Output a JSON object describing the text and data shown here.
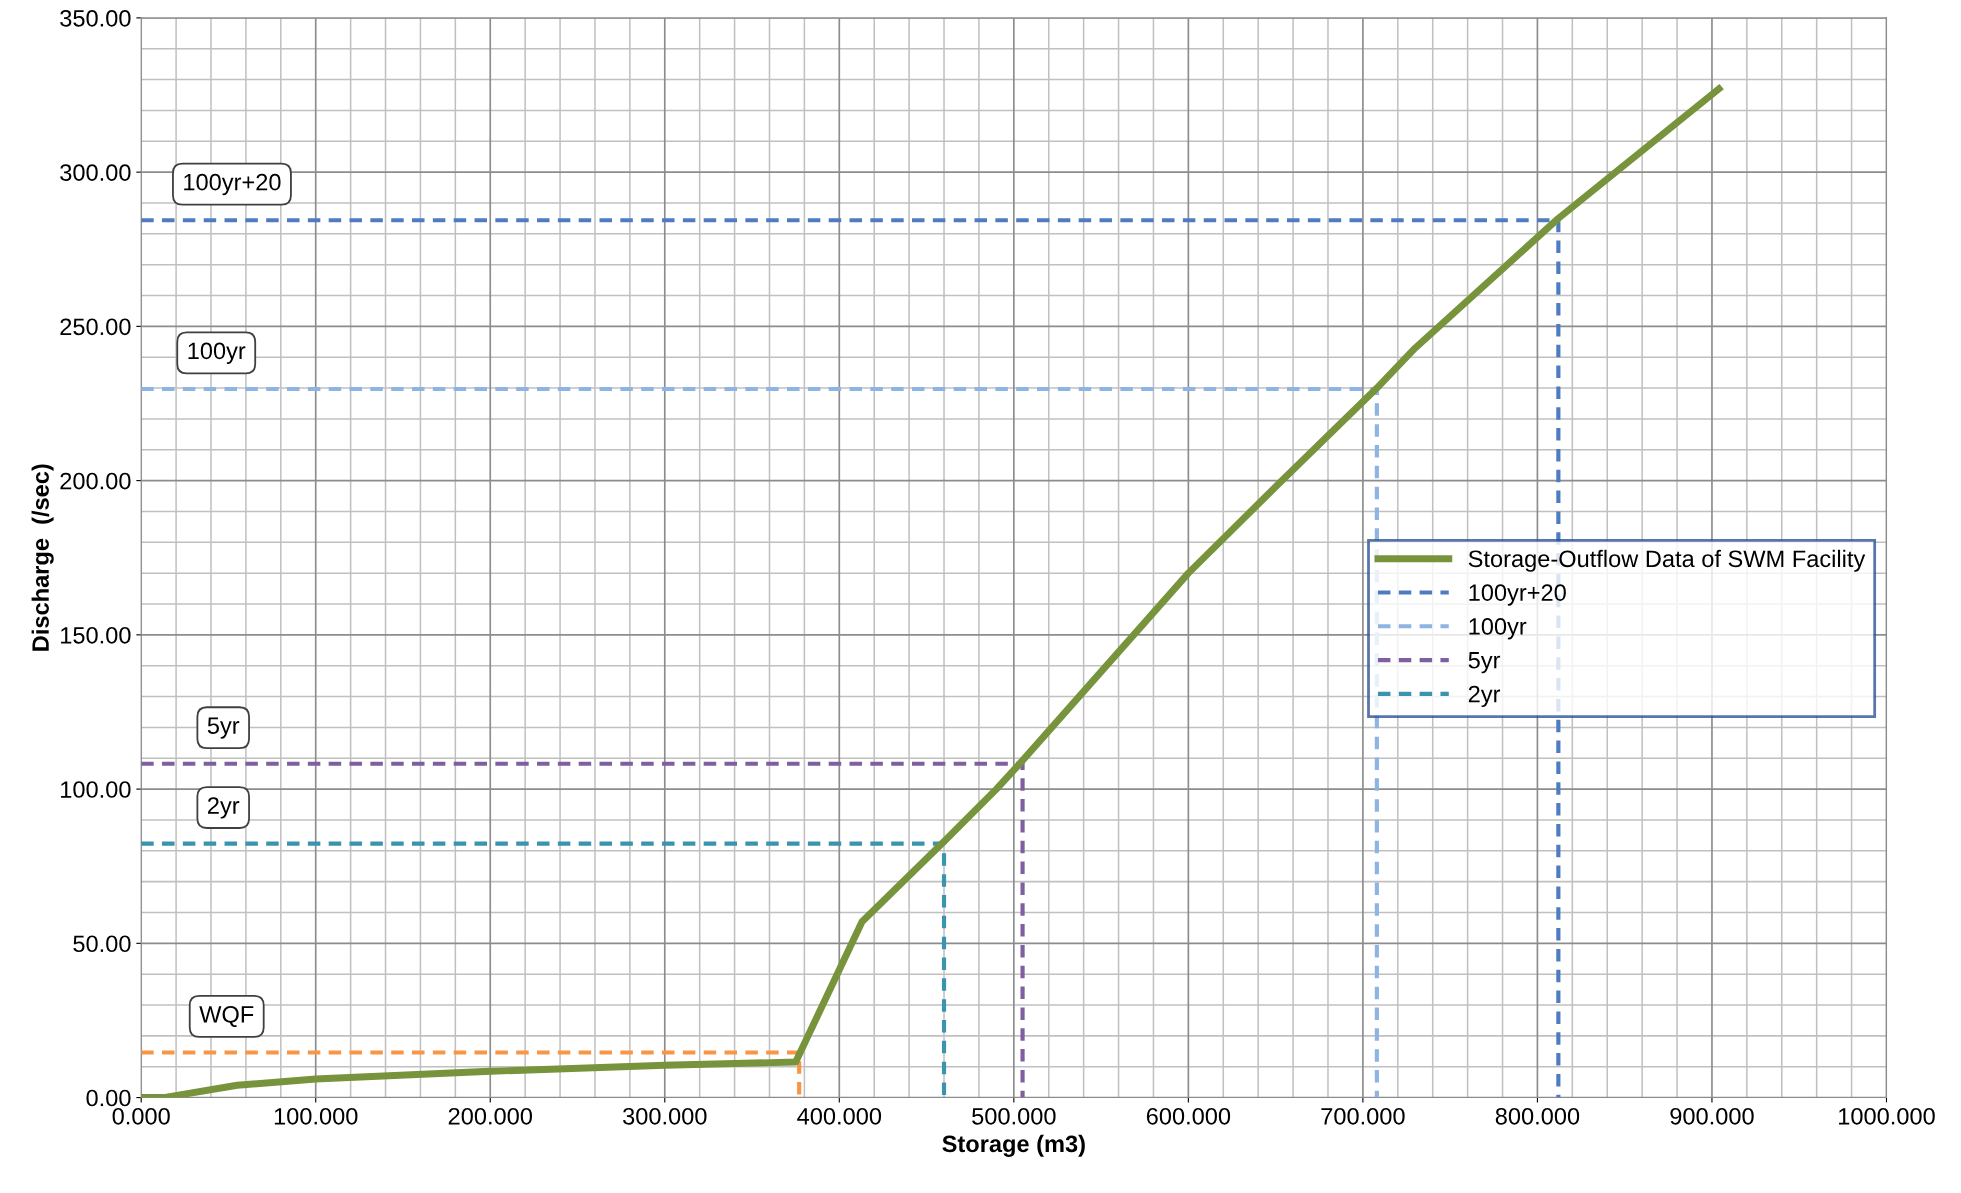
{
  "chart_data": {
    "type": "line",
    "xlabel": "Storage (m3)",
    "ylabel": "Discharge  (/sec)",
    "xlim": [
      0,
      1000
    ],
    "ylim": [
      0,
      350
    ],
    "xticks": [
      {
        "value": 0,
        "label": "0.000"
      },
      {
        "value": 100,
        "label": "100.000"
      },
      {
        "value": 200,
        "label": "200.000"
      },
      {
        "value": 300,
        "label": "300.000"
      },
      {
        "value": 400,
        "label": "400.000"
      },
      {
        "value": 500,
        "label": "500.000"
      },
      {
        "value": 600,
        "label": "600.000"
      },
      {
        "value": 700,
        "label": "700.000"
      },
      {
        "value": 800,
        "label": "800.000"
      },
      {
        "value": 900,
        "label": "900.000"
      },
      {
        "value": 1000,
        "label": "1000.000"
      }
    ],
    "yticks": [
      {
        "value": 0,
        "label": "0.00"
      },
      {
        "value": 50,
        "label": "50.00"
      },
      {
        "value": 100,
        "label": "100.00"
      },
      {
        "value": 150,
        "label": "150.00"
      },
      {
        "value": 200,
        "label": "200.00"
      },
      {
        "value": 250,
        "label": "250.00"
      },
      {
        "value": 300,
        "label": "300.00"
      },
      {
        "value": 350,
        "label": "350.00"
      }
    ],
    "grid": true,
    "legend": "center right",
    "marker": "none",
    "series": [
      {
        "name": "Storage-Outflow Data of SWM Facility",
        "color": "#77933c",
        "line_style": "solid",
        "x": [
          0,
          13,
          55,
          100,
          200,
          300,
          375,
          413,
          460,
          490,
          503,
          600,
          650,
          708,
          730,
          812,
          904
        ],
        "values": [
          0,
          0,
          4,
          6,
          8.5,
          10.5,
          11.5,
          57,
          83,
          100,
          108,
          170,
          198,
          230,
          243,
          285,
          327
        ]
      },
      {
        "name": "100yr+20",
        "color": "#4f7cc0",
        "line_style": "dashed",
        "x": [
          0,
          812,
          812
        ],
        "values": [
          284.4,
          284.4,
          0
        ]
      },
      {
        "name": "100yr",
        "color": "#8db4e2",
        "line_style": "dashed",
        "x": [
          0,
          708,
          708
        ],
        "values": [
          229.7,
          229.7,
          0
        ]
      },
      {
        "name": "5yr",
        "color": "#7f5fa0",
        "line_style": "dashed",
        "x": [
          0,
          505,
          505
        ],
        "values": [
          108.2,
          108.2,
          0
        ]
      },
      {
        "name": "2yr",
        "color": "#3a94ad",
        "line_style": "dashed",
        "x": [
          0,
          460,
          460
        ],
        "values": [
          82.3,
          82.3,
          0
        ]
      },
      {
        "color": "#f79646",
        "line_style": "dashed",
        "x": [
          0,
          377,
          377
        ],
        "values": [
          14.6,
          14.6,
          0
        ]
      }
    ],
    "annotations": [
      {
        "text": "100yr+20",
        "x": 52,
        "y": 284.4
      },
      {
        "text": "100yr",
        "x": 43,
        "y": 229.7
      },
      {
        "text": "5yr",
        "x": 47,
        "y": 108.2
      },
      {
        "text": "2yr",
        "x": 47,
        "y": 82.3
      },
      {
        "text": "WQF",
        "x": 49,
        "y": 14.6
      }
    ]
  }
}
